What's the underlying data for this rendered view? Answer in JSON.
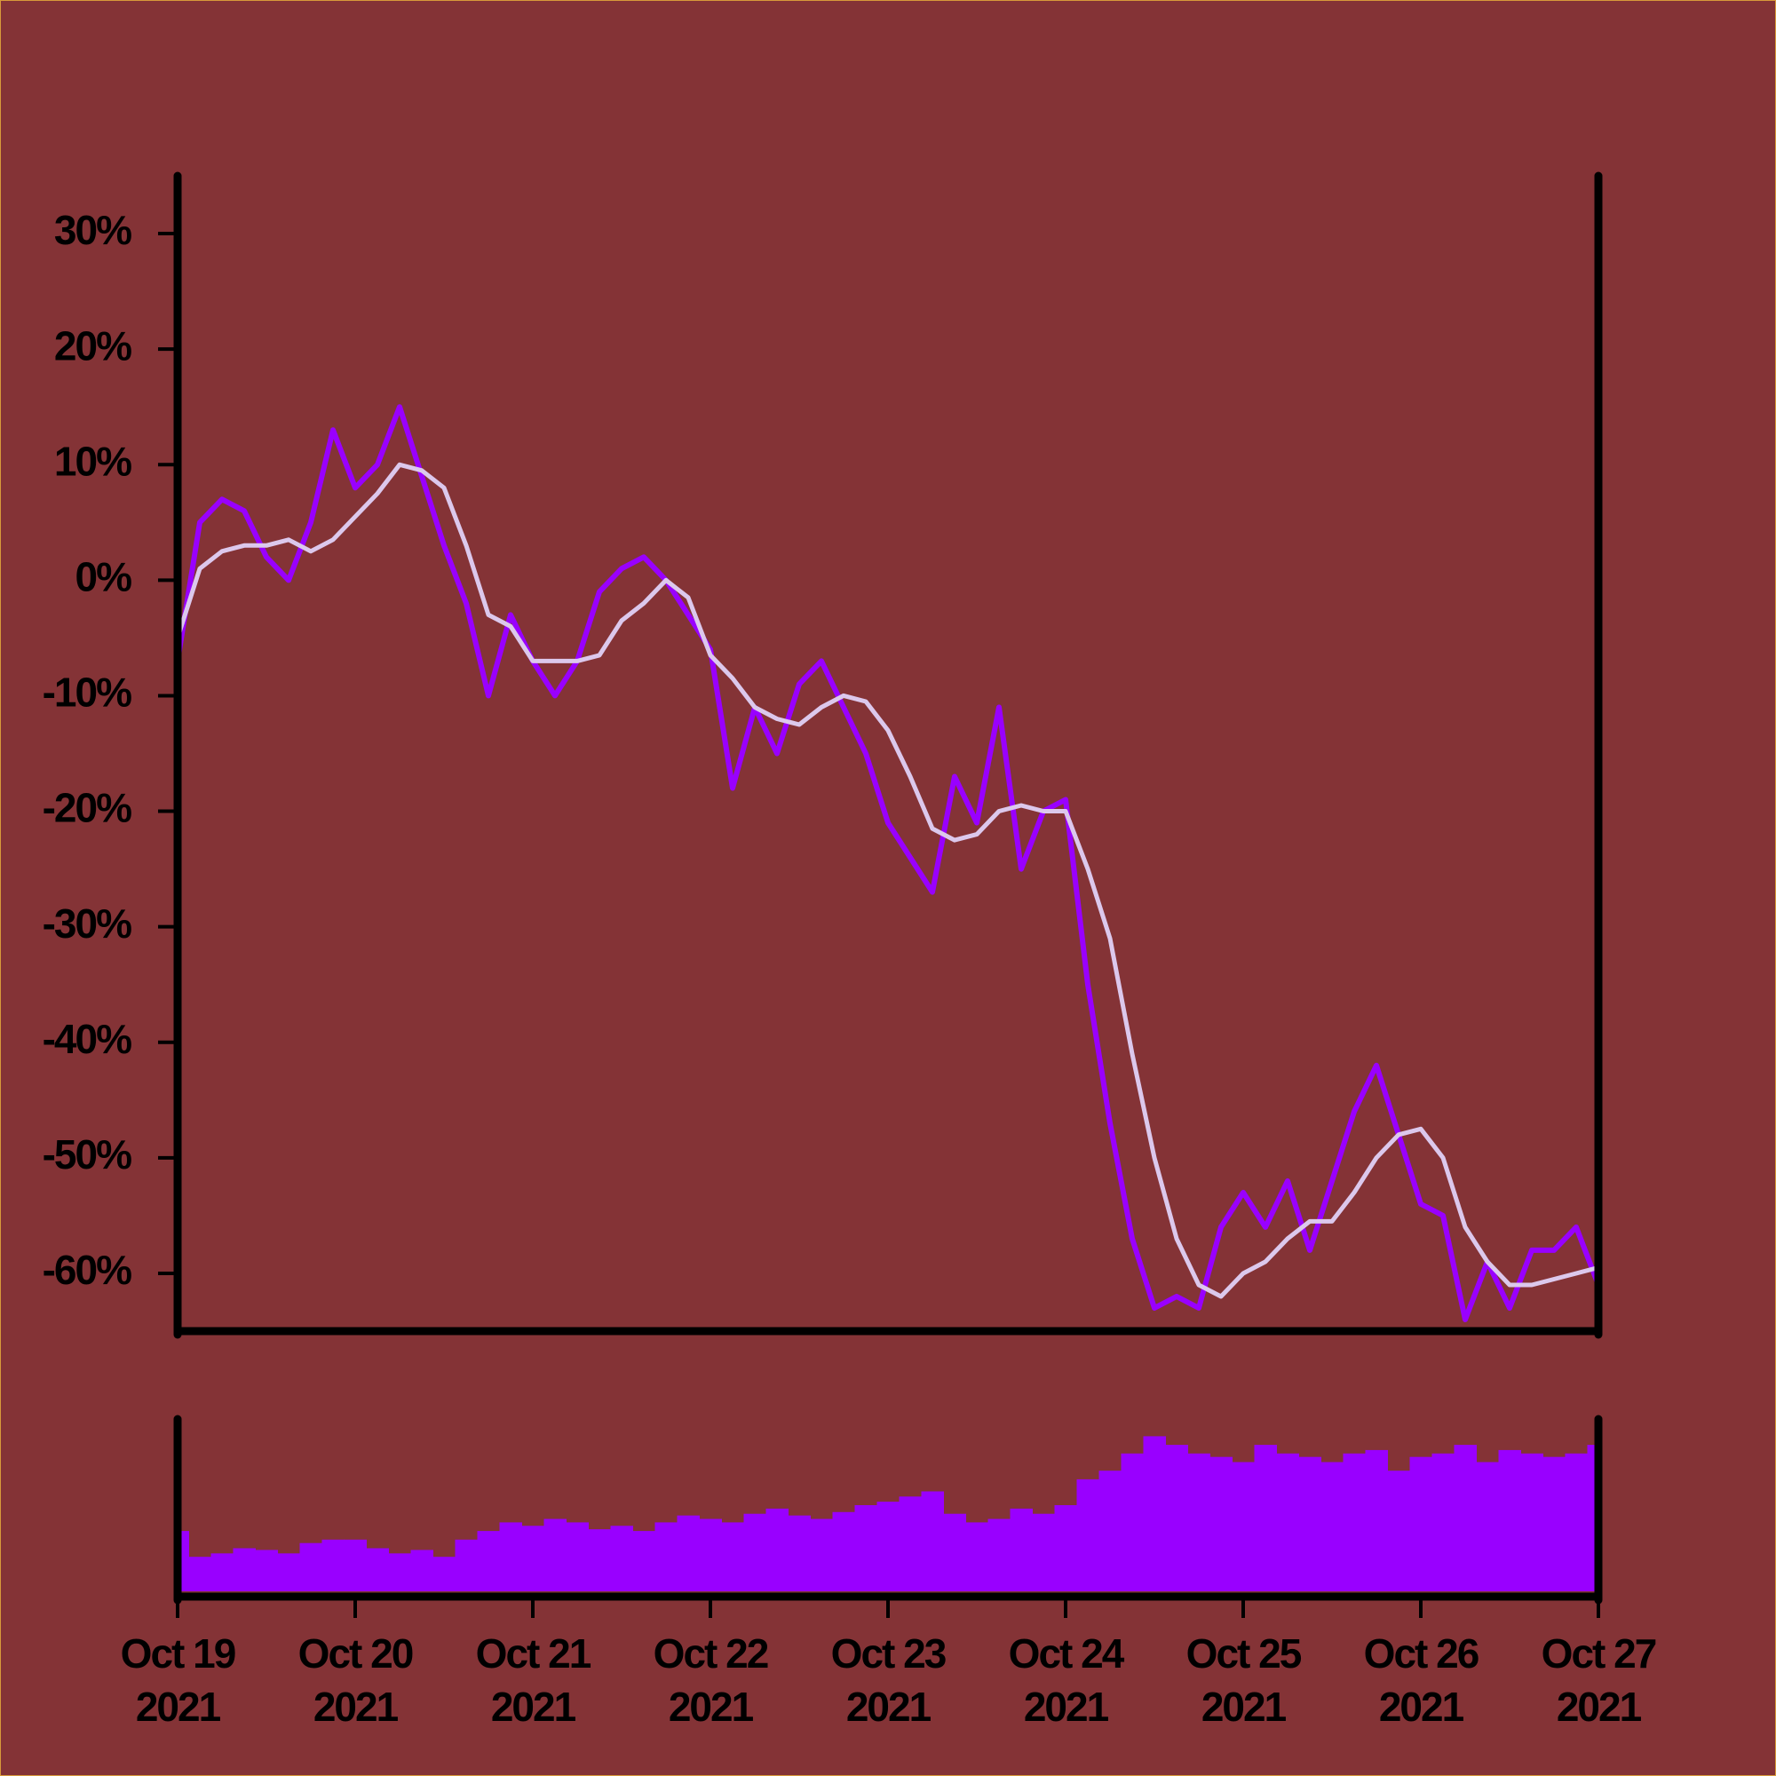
{
  "chart_data": [
    {
      "type": "line",
      "x": [
        "2021-10-19 00:00",
        "2021-10-19 03:00",
        "2021-10-19 06:00",
        "2021-10-19 09:00",
        "2021-10-19 12:00",
        "2021-10-19 15:00",
        "2021-10-19 18:00",
        "2021-10-19 21:00",
        "2021-10-20 00:00",
        "2021-10-20 03:00",
        "2021-10-20 06:00",
        "2021-10-20 09:00",
        "2021-10-20 12:00",
        "2021-10-20 15:00",
        "2021-10-20 18:00",
        "2021-10-20 21:00",
        "2021-10-21 00:00",
        "2021-10-21 03:00",
        "2021-10-21 06:00",
        "2021-10-21 09:00",
        "2021-10-21 12:00",
        "2021-10-21 15:00",
        "2021-10-21 18:00",
        "2021-10-21 21:00",
        "2021-10-22 00:00",
        "2021-10-22 03:00",
        "2021-10-22 06:00",
        "2021-10-22 09:00",
        "2021-10-22 12:00",
        "2021-10-22 15:00",
        "2021-10-22 18:00",
        "2021-10-22 21:00",
        "2021-10-23 00:00",
        "2021-10-23 03:00",
        "2021-10-23 06:00",
        "2021-10-23 09:00",
        "2021-10-23 12:00",
        "2021-10-23 15:00",
        "2021-10-23 18:00",
        "2021-10-23 21:00",
        "2021-10-24 00:00",
        "2021-10-24 03:00",
        "2021-10-24 06:00",
        "2021-10-24 09:00",
        "2021-10-24 12:00",
        "2021-10-24 15:00",
        "2021-10-24 18:00",
        "2021-10-24 21:00",
        "2021-10-25 00:00",
        "2021-10-25 03:00",
        "2021-10-25 06:00",
        "2021-10-25 09:00",
        "2021-10-25 12:00",
        "2021-10-25 15:00",
        "2021-10-25 18:00",
        "2021-10-25 21:00",
        "2021-10-26 00:00",
        "2021-10-26 03:00",
        "2021-10-26 06:00",
        "2021-10-26 09:00",
        "2021-10-26 12:00",
        "2021-10-26 15:00",
        "2021-10-26 18:00",
        "2021-10-26 21:00",
        "2021-10-27 00:00"
      ],
      "series": [
        {
          "color": "#9900ff",
          "values": [
            -7,
            5,
            7,
            6,
            2,
            0,
            5,
            13,
            8,
            10,
            15,
            9,
            3,
            -2,
            -10,
            -3,
            -7,
            -10,
            -7,
            -1,
            1,
            2,
            0,
            -3,
            -6,
            -18,
            -11,
            -15,
            -9,
            -7,
            -11,
            -15,
            -21,
            -24,
            -27,
            -17,
            -21,
            -11,
            -25,
            -20,
            -19,
            -35,
            -47,
            -57,
            -63,
            -62,
            -63,
            -56,
            -53,
            -56,
            -52,
            -58,
            -52,
            -46,
            -42,
            -48,
            -54,
            -55,
            -64,
            -59,
            -63,
            -58,
            -58,
            -56,
            -61
          ]
        },
        {
          "color": "#dcc8ec",
          "values": [
            -5,
            1,
            2.5,
            3,
            3,
            3.5,
            2.5,
            3.5,
            5.5,
            7.5,
            10,
            9.5,
            8,
            3,
            -3,
            -4,
            -7,
            -7,
            -7,
            -6.5,
            -3.5,
            -2,
            0,
            -1.5,
            -6.5,
            -8.5,
            -11,
            -12,
            -12.5,
            -11,
            -10,
            -10.5,
            -13,
            -17,
            -21.5,
            -22.5,
            -22,
            -20,
            -19.5,
            -20,
            -20,
            -25,
            -31,
            -41,
            -50,
            -57,
            -61,
            -62,
            -60,
            -59,
            -57,
            -55.5,
            -55.5,
            -53,
            -50,
            -48,
            -47.5,
            -50,
            -56,
            -59,
            -61,
            -61,
            -60.5,
            -60,
            -59.5
          ]
        }
      ],
      "xlim": [
        "2021-10-19",
        "2021-10-27"
      ],
      "ylim": [
        -65,
        35
      ],
      "yticks": [
        {
          "value": 30,
          "label": "30%"
        },
        {
          "value": 20,
          "label": "20%"
        },
        {
          "value": 10,
          "label": "10%"
        },
        {
          "value": 0,
          "label": "0%"
        },
        {
          "value": -10,
          "label": "-10%"
        },
        {
          "value": -20,
          "label": "-20%"
        },
        {
          "value": -30,
          "label": "-30%"
        },
        {
          "value": -40,
          "label": "-40%"
        },
        {
          "value": -50,
          "label": "-50%"
        },
        {
          "value": -60,
          "label": "-60%"
        }
      ]
    },
    {
      "type": "bar",
      "x": [
        "2021-10-19 00:00",
        "2021-10-19 03:00",
        "2021-10-19 06:00",
        "2021-10-19 09:00",
        "2021-10-19 12:00",
        "2021-10-19 15:00",
        "2021-10-19 18:00",
        "2021-10-19 21:00",
        "2021-10-20 00:00",
        "2021-10-20 03:00",
        "2021-10-20 06:00",
        "2021-10-20 09:00",
        "2021-10-20 12:00",
        "2021-10-20 15:00",
        "2021-10-20 18:00",
        "2021-10-20 21:00",
        "2021-10-21 00:00",
        "2021-10-21 03:00",
        "2021-10-21 06:00",
        "2021-10-21 09:00",
        "2021-10-21 12:00",
        "2021-10-21 15:00",
        "2021-10-21 18:00",
        "2021-10-21 21:00",
        "2021-10-22 00:00",
        "2021-10-22 03:00",
        "2021-10-22 06:00",
        "2021-10-22 09:00",
        "2021-10-22 12:00",
        "2021-10-22 15:00",
        "2021-10-22 18:00",
        "2021-10-22 21:00",
        "2021-10-23 00:00",
        "2021-10-23 03:00",
        "2021-10-23 06:00",
        "2021-10-23 09:00",
        "2021-10-23 12:00",
        "2021-10-23 15:00",
        "2021-10-23 18:00",
        "2021-10-23 21:00",
        "2021-10-24 00:00",
        "2021-10-24 03:00",
        "2021-10-24 06:00",
        "2021-10-24 09:00",
        "2021-10-24 12:00",
        "2021-10-24 15:00",
        "2021-10-24 18:00",
        "2021-10-24 21:00",
        "2021-10-25 00:00",
        "2021-10-25 03:00",
        "2021-10-25 06:00",
        "2021-10-25 09:00",
        "2021-10-25 12:00",
        "2021-10-25 15:00",
        "2021-10-25 18:00",
        "2021-10-25 21:00",
        "2021-10-26 00:00",
        "2021-10-26 03:00",
        "2021-10-26 06:00",
        "2021-10-26 09:00",
        "2021-10-26 12:00",
        "2021-10-26 15:00",
        "2021-10-26 18:00",
        "2021-10-26 21:00",
        "2021-10-27 00:00"
      ],
      "values": [
        35,
        20,
        22,
        25,
        24,
        22,
        28,
        30,
        30,
        25,
        22,
        24,
        20,
        30,
        35,
        40,
        38,
        42,
        40,
        36,
        38,
        35,
        40,
        44,
        42,
        40,
        45,
        48,
        44,
        42,
        46,
        50,
        52,
        55,
        58,
        45,
        40,
        42,
        48,
        45,
        50,
        65,
        70,
        80,
        90,
        85,
        80,
        78,
        75,
        85,
        80,
        78,
        75,
        80,
        82,
        70,
        78,
        80,
        85,
        75,
        82,
        80,
        78,
        80,
        85
      ],
      "color": "#9900ff",
      "xlim": [
        "2021-10-19",
        "2021-10-27"
      ],
      "ylim": [
        0,
        100
      ],
      "xticks": [
        {
          "value": "2021-10-19",
          "label": [
            "Oct 19",
            "2021"
          ]
        },
        {
          "value": "2021-10-20",
          "label": [
            "Oct 20",
            "2021"
          ]
        },
        {
          "value": "2021-10-21",
          "label": [
            "Oct 21",
            "2021"
          ]
        },
        {
          "value": "2021-10-22",
          "label": [
            "Oct 22",
            "2021"
          ]
        },
        {
          "value": "2021-10-23",
          "label": [
            "Oct 23",
            "2021"
          ]
        },
        {
          "value": "2021-10-24",
          "label": [
            "Oct 24",
            "2021"
          ]
        },
        {
          "value": "2021-10-25",
          "label": [
            "Oct 25",
            "2021"
          ]
        },
        {
          "value": "2021-10-26",
          "label": [
            "Oct 26",
            "2021"
          ]
        },
        {
          "value": "2021-10-27",
          "label": [
            "Oct 27",
            "2021"
          ]
        }
      ]
    }
  ]
}
